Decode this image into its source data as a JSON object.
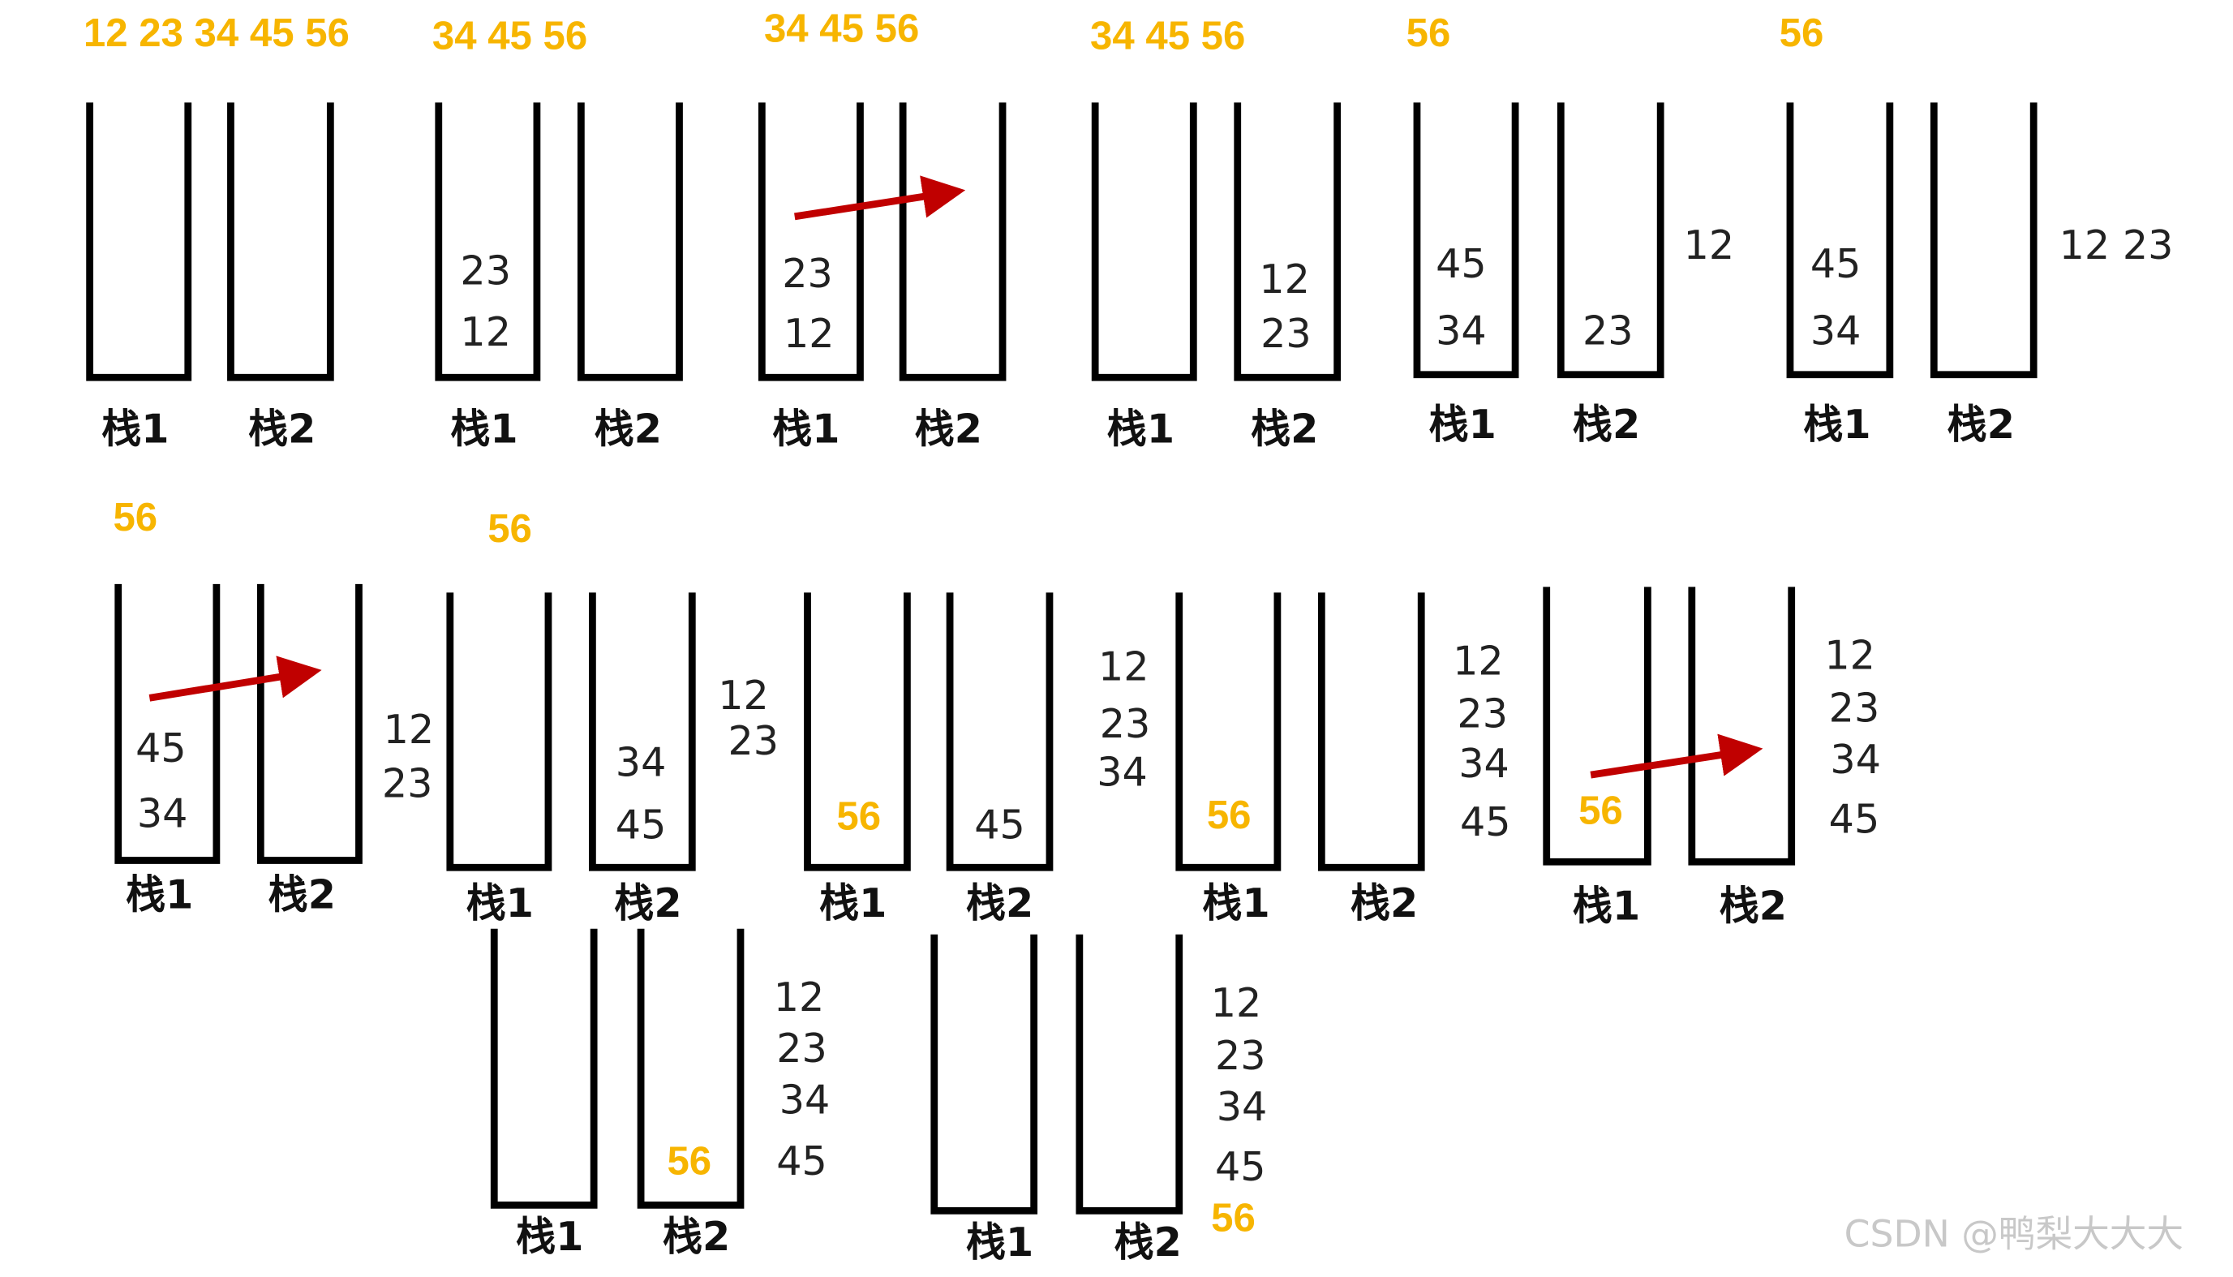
{
  "panels": [
    {
      "labels": [
        "栈1",
        "栈2"
      ],
      "items": [
        {
          "text": "12 23 34 45 56",
          "color": "#f7b500"
        }
      ]
    },
    {
      "labels": [
        "栈1",
        "栈2"
      ],
      "items": [
        {
          "text": "34 45 56",
          "color": "#f7b500"
        },
        {
          "text": "23"
        },
        {
          "text": "12"
        }
      ]
    },
    {
      "labels": [
        "栈1",
        "栈2"
      ],
      "items": [
        {
          "text": "34 45 56",
          "color": "#f7b500"
        },
        {
          "text": "23"
        },
        {
          "text": "12"
        }
      ]
    },
    {
      "labels": [
        "栈1",
        "栈2"
      ],
      "items": [
        {
          "text": "34 45 56",
          "color": "#f7b500"
        },
        {
          "text": "12"
        },
        {
          "text": "23"
        }
      ]
    },
    {
      "labels": [
        "栈1",
        "栈2"
      ],
      "items": [
        {
          "text": "56",
          "color": "#f7b500"
        },
        {
          "text": "45"
        },
        {
          "text": "34"
        },
        {
          "text": "23"
        },
        {
          "text": "12"
        }
      ]
    },
    {
      "labels": [
        "栈1",
        "栈2"
      ],
      "items": [
        {
          "text": "56",
          "color": "#f7b500"
        },
        {
          "text": "45"
        },
        {
          "text": "34"
        },
        {
          "text": "12  23"
        }
      ]
    },
    {
      "labels": [
        "栈1",
        "栈2"
      ],
      "items": [
        {
          "text": "56",
          "color": "#f7b500"
        },
        {
          "text": "45"
        },
        {
          "text": "34"
        }
      ]
    },
    {
      "labels": [
        "栈1",
        "栈2"
      ],
      "items": [
        {
          "text": "56",
          "color": "#f7b500"
        },
        {
          "text": "12"
        },
        {
          "text": "23"
        },
        {
          "text": "34"
        },
        {
          "text": "45"
        }
      ]
    },
    {
      "labels": [
        "栈1",
        "栈2"
      ],
      "items": [
        {
          "text": "12"
        },
        {
          "text": "23"
        },
        {
          "text": "56",
          "color": "#f7b500"
        },
        {
          "text": "45"
        }
      ]
    },
    {
      "labels": [
        "栈1",
        "栈2"
      ],
      "items": [
        {
          "text": "12"
        },
        {
          "text": "23"
        },
        {
          "text": "34"
        },
        {
          "text": "56",
          "color": "#f7b500"
        },
        {
          "text": "12"
        },
        {
          "text": "23"
        },
        {
          "text": "34"
        },
        {
          "text": "45"
        }
      ]
    },
    {
      "labels": [
        "栈1",
        "栈2"
      ],
      "items": [
        {
          "text": "56",
          "color": "#f7b500"
        },
        {
          "text": "12"
        },
        {
          "text": "23"
        },
        {
          "text": "34"
        },
        {
          "text": "45"
        }
      ]
    },
    {
      "labels": [
        "栈1",
        "栈2"
      ],
      "items": [
        {
          "text": "56",
          "color": "#f7b500"
        },
        {
          "text": "12"
        },
        {
          "text": "23"
        },
        {
          "text": "34"
        },
        {
          "text": "45"
        }
      ]
    },
    {
      "labels": [
        "栈1",
        "栈2"
      ],
      "items": [
        {
          "text": "12"
        },
        {
          "text": "23"
        },
        {
          "text": "34"
        },
        {
          "text": "45"
        },
        {
          "text": "56",
          "color": "#f7b500"
        }
      ]
    }
  ],
  "watermark": "CSDN @鸭梨大大大"
}
